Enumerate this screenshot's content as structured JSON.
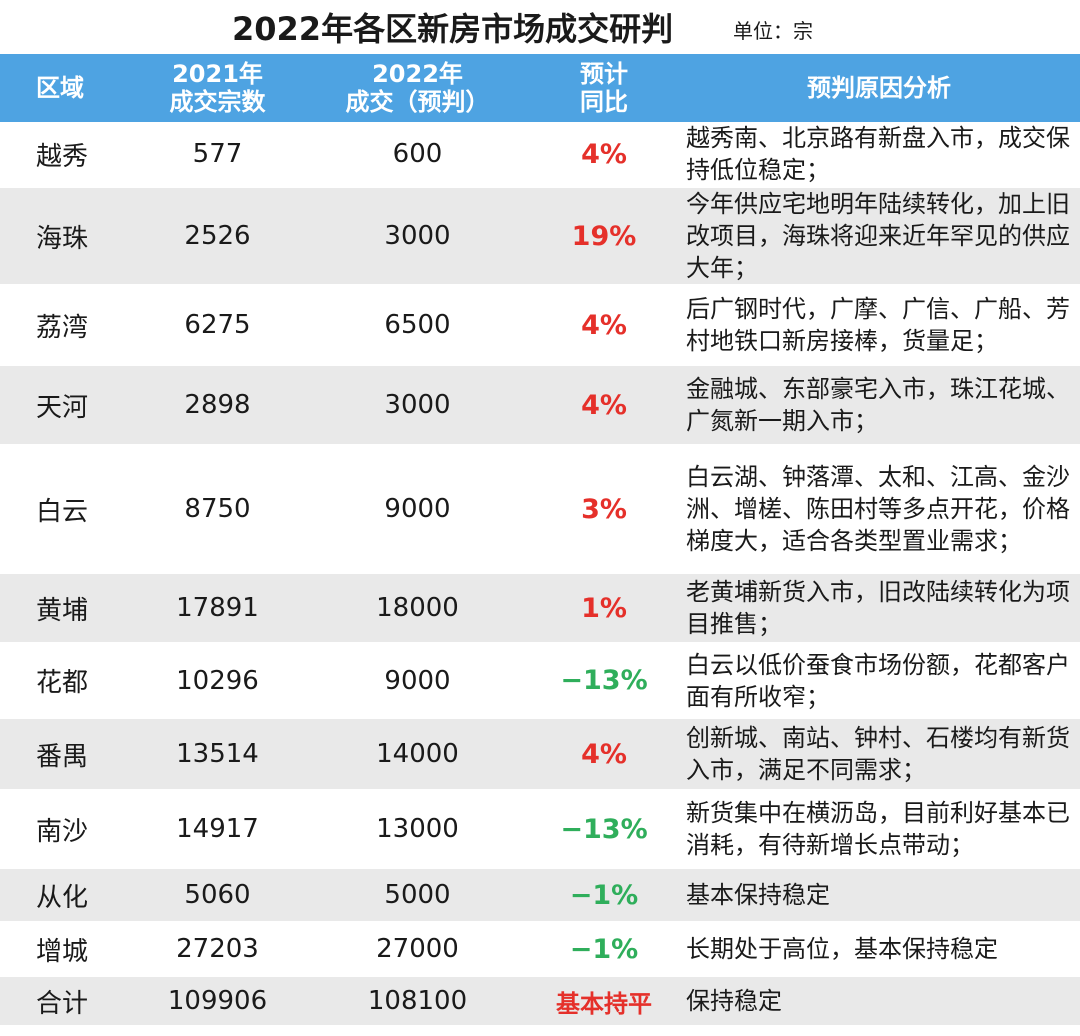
{
  "title": "2022年各区新房市场成交研判",
  "unit": "单位：宗",
  "colors": {
    "header_bg": "#4ea3e2",
    "stripe": "#e9e9e9",
    "up": "#e5302a",
    "down": "#2fae5b"
  },
  "headers": {
    "region": "区域",
    "deals_2021_l1": "2021年",
    "deals_2021_l2": "成交宗数",
    "deals_2022_l1": "2022年",
    "deals_2022_l2": "成交（预判）",
    "yoy_l1": "预计",
    "yoy_l2": "同比",
    "reason": "预判原因分析"
  },
  "rows": [
    {
      "region": "越秀",
      "deals_2021": "577",
      "deals_2022": "600",
      "yoy": "4%",
      "trend": "up",
      "reason": "越秀南、北京路有新盘入市，成交保持低位稳定；"
    },
    {
      "region": "海珠",
      "deals_2021": "2526",
      "deals_2022": "3000",
      "yoy": "19%",
      "trend": "up",
      "reason": "今年供应宅地明年陆续转化，加上旧改项目，海珠将迎来近年罕见的供应大年；"
    },
    {
      "region": "荔湾",
      "deals_2021": "6275",
      "deals_2022": "6500",
      "yoy": "4%",
      "trend": "up",
      "reason": "后广钢时代，广摩、广信、广船、芳村地铁口新房接棒，货量足；"
    },
    {
      "region": "天河",
      "deals_2021": "2898",
      "deals_2022": "3000",
      "yoy": "4%",
      "trend": "up",
      "reason": "金融城、东部豪宅入市，珠江花城、广氮新一期入市；"
    },
    {
      "region": "白云",
      "deals_2021": "8750",
      "deals_2022": "9000",
      "yoy": "3%",
      "trend": "up",
      "reason": "白云湖、钟落潭、太和、江高、金沙洲、增槎、陈田村等多点开花，价格梯度大，适合各类型置业需求；"
    },
    {
      "region": "黄埔",
      "deals_2021": "17891",
      "deals_2022": "18000",
      "yoy": "1%",
      "trend": "up",
      "reason": "老黄埔新货入市，旧改陆续转化为项目推售；"
    },
    {
      "region": "花都",
      "deals_2021": "10296",
      "deals_2022": "9000",
      "yoy": "−13%",
      "trend": "down",
      "reason": "白云以低价蚕食市场份额，花都客户面有所收窄；"
    },
    {
      "region": "番禺",
      "deals_2021": "13514",
      "deals_2022": "14000",
      "yoy": "4%",
      "trend": "up",
      "reason": "创新城、南站、钟村、石楼均有新货入市，满足不同需求；"
    },
    {
      "region": "南沙",
      "deals_2021": "14917",
      "deals_2022": "13000",
      "yoy": "−13%",
      "trend": "down",
      "reason": "新货集中在横沥岛，目前利好基本已消耗，有待新增长点带动；"
    },
    {
      "region": "从化",
      "deals_2021": "5060",
      "deals_2022": "5000",
      "yoy": "−1%",
      "trend": "down",
      "reason": "基本保持稳定"
    },
    {
      "region": "增城",
      "deals_2021": "27203",
      "deals_2022": "27000",
      "yoy": "−1%",
      "trend": "down",
      "reason": "长期处于高位，基本保持稳定"
    },
    {
      "region": "合计",
      "deals_2021": "109906",
      "deals_2022": "108100",
      "yoy": "基本持平",
      "trend": "up",
      "reason": "保持稳定"
    }
  ]
}
